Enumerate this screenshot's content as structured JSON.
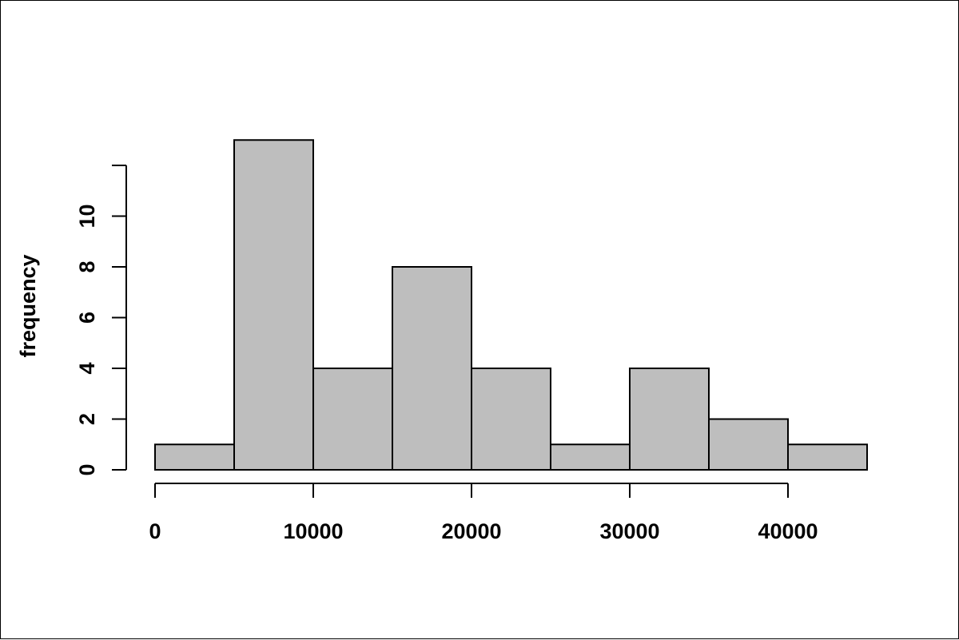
{
  "chart_data": {
    "type": "bar",
    "title": "",
    "xlabel": "",
    "ylabel": "frequency",
    "bins": [
      {
        "from": 0,
        "to": 5000,
        "count": 1
      },
      {
        "from": 5000,
        "to": 10000,
        "count": 13
      },
      {
        "from": 10000,
        "to": 15000,
        "count": 4
      },
      {
        "from": 15000,
        "to": 20000,
        "count": 8
      },
      {
        "from": 20000,
        "to": 25000,
        "count": 4
      },
      {
        "from": 25000,
        "to": 30000,
        "count": 1
      },
      {
        "from": 30000,
        "to": 35000,
        "count": 4
      },
      {
        "from": 35000,
        "to": 40000,
        "count": 2
      },
      {
        "from": 40000,
        "to": 45000,
        "count": 1
      }
    ],
    "x_ticks": [
      0,
      10000,
      20000,
      30000,
      40000
    ],
    "y_ticks": [
      0,
      2,
      4,
      6,
      8,
      10,
      12
    ],
    "y_tick_labels": [
      "0",
      "2",
      "4",
      "6",
      "8",
      "10",
      ""
    ],
    "xlim": [
      0,
      45000
    ],
    "ylim": [
      0,
      12
    ],
    "grid": false,
    "bar_fill": "#bebebe",
    "bar_stroke": "#000000"
  }
}
